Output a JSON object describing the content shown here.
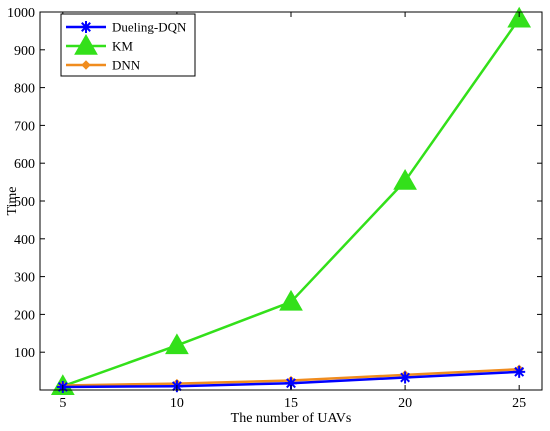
{
  "chart_data": {
    "type": "line",
    "xlabel": "The number of UAVs",
    "ylabel": "Time",
    "x": [
      5,
      10,
      15,
      20,
      25
    ],
    "xlim": [
      4,
      26
    ],
    "ylim": [
      0,
      1000
    ],
    "xticks": [
      "5",
      "10",
      "15",
      "20",
      "25"
    ],
    "yticks": [
      "100",
      "200",
      "300",
      "400",
      "500",
      "600",
      "700",
      "800",
      "900",
      "1000"
    ],
    "grid": false,
    "legend_position": "top-left",
    "series": [
      {
        "name": "Dueling-DQN",
        "values": [
          8,
          10,
          18,
          33,
          48
        ],
        "color": "#0000ff",
        "marker": "asterisk"
      },
      {
        "name": "KM",
        "values": [
          10,
          118,
          233,
          553,
          982
        ],
        "color": "#33e01a",
        "marker": "triangle"
      },
      {
        "name": "DNN",
        "values": [
          12,
          17,
          25,
          40,
          55
        ],
        "color": "#f08c1e",
        "marker": "diamond"
      }
    ]
  }
}
